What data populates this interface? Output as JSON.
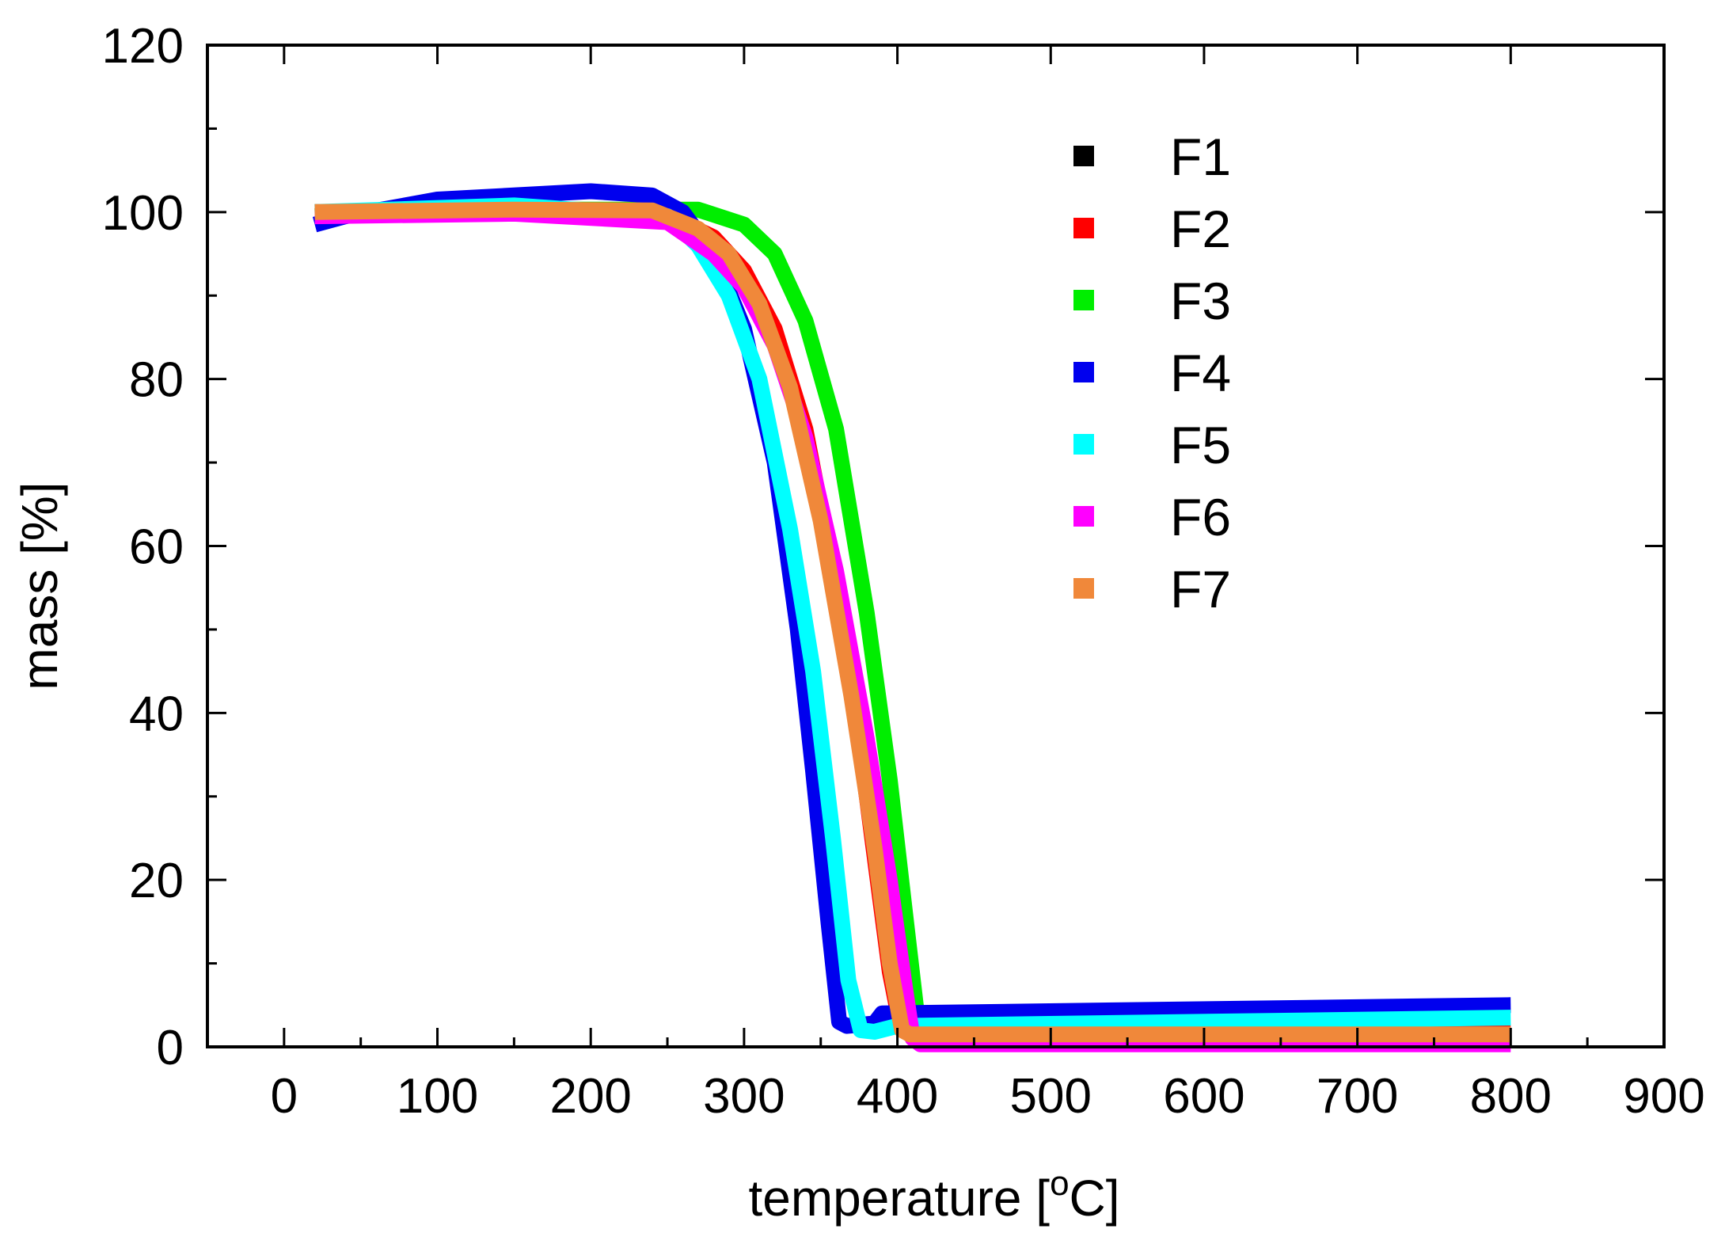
{
  "chart_data": {
    "type": "line",
    "title": "",
    "xlabel": "temperature [",
    "xlabel_superscript": "o",
    "xlabel_suffix": "C]",
    "ylabel": "mass [%]",
    "xlim": [
      -50,
      900
    ],
    "ylim": [
      0,
      120
    ],
    "x_ticks": [
      0,
      100,
      200,
      300,
      400,
      500,
      600,
      700,
      800,
      900
    ],
    "x_tick_labels": [
      "0",
      "100",
      "200",
      "300",
      "400",
      "500",
      "600",
      "700",
      "800",
      "900"
    ],
    "y_ticks": [
      0,
      20,
      40,
      60,
      80,
      100,
      120
    ],
    "y_tick_labels": [
      "0",
      "20",
      "40",
      "60",
      "80",
      "100",
      "120"
    ],
    "legend_position": "top-right",
    "series": [
      {
        "name": "F1",
        "color": "#000000",
        "x": [
          20,
          150,
          250,
          280,
          300,
          320,
          340,
          360,
          375,
          385,
          395,
          400,
          405,
          800
        ],
        "y": [
          100,
          100.3,
          99.8,
          97,
          93,
          85,
          72,
          52,
          33,
          20,
          7,
          2,
          1.2,
          1.5
        ]
      },
      {
        "name": "F2",
        "color": "#ff0000",
        "x": [
          20,
          150,
          250,
          280,
          300,
          320,
          340,
          360,
          375,
          385,
          395,
          402,
          408,
          800
        ],
        "y": [
          100,
          100.2,
          99.6,
          97,
          93,
          86,
          74,
          55,
          37,
          23,
          9,
          2.5,
          1.5,
          1.8
        ]
      },
      {
        "name": "F3",
        "color": "#00ee00",
        "x": [
          20,
          150,
          270,
          300,
          320,
          340,
          360,
          380,
          395,
          405,
          412,
          416,
          800
        ],
        "y": [
          99.5,
          100.3,
          100.3,
          98.5,
          95,
          87,
          74,
          52,
          32,
          16,
          5,
          0.5,
          1.0
        ]
      },
      {
        "name": "F4",
        "color": "#0000ee",
        "x": [
          20,
          30,
          40,
          100,
          200,
          240,
          260,
          280,
          300,
          320,
          335,
          345,
          355,
          362,
          367,
          385,
          390,
          800
        ],
        "y": [
          98.5,
          99,
          99.5,
          101.5,
          102.5,
          102,
          100,
          95,
          86,
          70,
          50,
          33,
          15,
          3,
          2.5,
          2.8,
          4,
          5
        ]
      },
      {
        "name": "F5",
        "color": "#00ffff",
        "x": [
          20,
          150,
          250,
          270,
          290,
          310,
          330,
          345,
          358,
          368,
          376,
          385,
          400,
          800
        ],
        "y": [
          100,
          100.8,
          99.5,
          96,
          90,
          80,
          62,
          45,
          25,
          8,
          2,
          1.8,
          2.5,
          3.5
        ]
      },
      {
        "name": "F6",
        "color": "#ff00ff",
        "x": [
          20,
          150,
          250,
          280,
          300,
          320,
          340,
          360,
          380,
          395,
          405,
          410,
          415,
          800
        ],
        "y": [
          99.5,
          99.8,
          98.8,
          95,
          91,
          84,
          73,
          57,
          37,
          20,
          7,
          1,
          0.3,
          0.3
        ]
      },
      {
        "name": "F7",
        "color": "#f0883a",
        "x": [
          20,
          150,
          240,
          270,
          290,
          310,
          330,
          350,
          370,
          385,
          395,
          403,
          408,
          800
        ],
        "y": [
          100,
          100.3,
          100.2,
          98,
          95,
          89,
          79,
          63,
          42,
          24,
          10,
          2,
          1.5,
          1.5
        ]
      }
    ]
  }
}
